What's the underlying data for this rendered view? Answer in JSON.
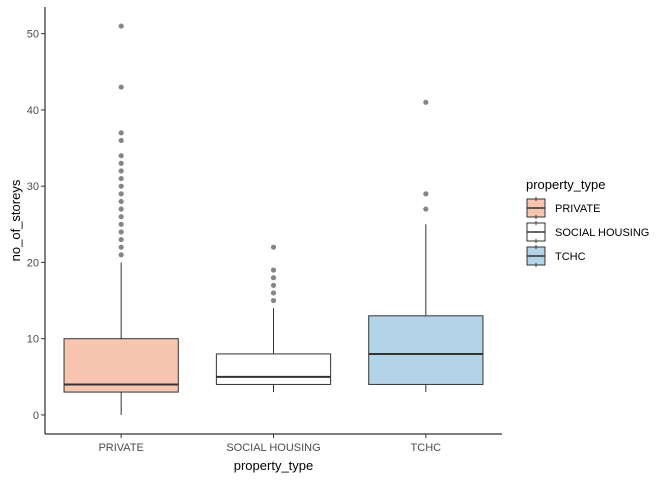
{
  "chart_data": {
    "type": "boxplot",
    "xlabel": "property_type",
    "ylabel": "no_of_storeys",
    "ylim": [
      -2.5,
      53.5
    ],
    "yticks": [
      0,
      10,
      20,
      30,
      40,
      50
    ],
    "grid": false,
    "legend": {
      "title": "property_type",
      "placement": "right",
      "entries": [
        "PRIVATE",
        "SOCIAL HOUSING",
        "TCHC"
      ]
    },
    "categories": [
      "PRIVATE",
      "SOCIAL HOUSING",
      "TCHC"
    ],
    "series": [
      {
        "name": "PRIVATE",
        "color": "#f8c5b0",
        "min": 0,
        "q1": 3,
        "median": 4,
        "q3": 10,
        "max": 20,
        "outliers": [
          21,
          22,
          23,
          24,
          25,
          26,
          27,
          28,
          29,
          30,
          31,
          32,
          33,
          34,
          36,
          37,
          43,
          51
        ]
      },
      {
        "name": "SOCIAL HOUSING",
        "color": "#ffffff",
        "min": 3,
        "q1": 4,
        "median": 5,
        "q3": 8,
        "max": 14,
        "outliers": [
          15,
          16,
          17,
          18,
          19,
          22
        ]
      },
      {
        "name": "TCHC",
        "color": "#b3d4e6",
        "min": 3,
        "q1": 4,
        "median": 8,
        "q3": 13,
        "max": 25,
        "outliers": [
          27,
          29,
          41
        ]
      }
    ]
  }
}
